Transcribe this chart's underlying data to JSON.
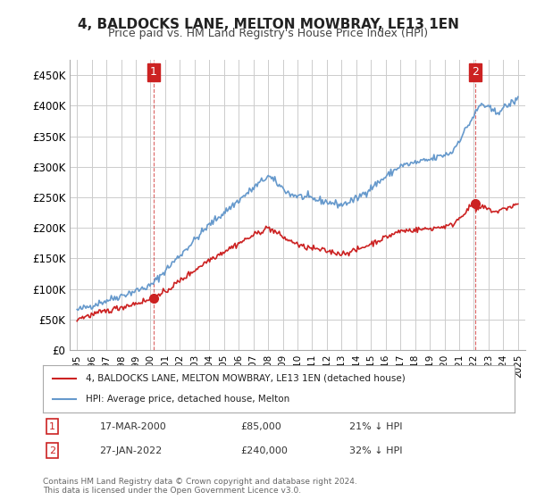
{
  "title": "4, BALDOCKS LANE, MELTON MOWBRAY, LE13 1EN",
  "subtitle": "Price paid vs. HM Land Registry's House Price Index (HPI)",
  "hpi_color": "#6699cc",
  "price_color": "#cc2222",
  "annotation_box_color": "#cc2222",
  "background_color": "#ffffff",
  "grid_color": "#cccccc",
  "ylim": [
    0,
    475000
  ],
  "yticks": [
    0,
    50000,
    100000,
    150000,
    200000,
    250000,
    300000,
    350000,
    400000,
    450000
  ],
  "ytick_labels": [
    "£0",
    "£50K",
    "£100K",
    "£150K",
    "£200K",
    "£250K",
    "£300K",
    "£350K",
    "£400K",
    "£450K"
  ],
  "xlim_start": 1994.5,
  "xlim_end": 2025.5,
  "sale1_x": 2000.21,
  "sale1_y": 85000,
  "sale1_label": "1",
  "sale1_date": "17-MAR-2000",
  "sale1_price": "£85,000",
  "sale1_hpi": "21% ↓ HPI",
  "sale2_x": 2022.07,
  "sale2_y": 240000,
  "sale2_label": "2",
  "sale2_date": "27-JAN-2022",
  "sale2_price": "£240,000",
  "sale2_hpi": "32% ↓ HPI",
  "legend_label1": "4, BALDOCKS LANE, MELTON MOWBRAY, LE13 1EN (detached house)",
  "legend_label2": "HPI: Average price, detached house, Melton",
  "footer": "Contains HM Land Registry data © Crown copyright and database right 2024.\nThis data is licensed under the Open Government Licence v3.0.",
  "xlabel_years": [
    1995,
    1996,
    1997,
    1998,
    1999,
    2000,
    2001,
    2002,
    2003,
    2004,
    2005,
    2006,
    2007,
    2008,
    2009,
    2010,
    2011,
    2012,
    2013,
    2014,
    2015,
    2016,
    2017,
    2018,
    2019,
    2020,
    2021,
    2022,
    2023,
    2024,
    2025
  ]
}
